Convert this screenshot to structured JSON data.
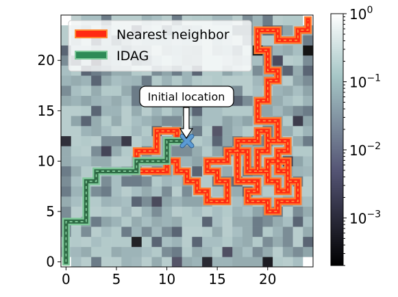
{
  "chart_data": {
    "type": "heatmap",
    "grid_size": 25,
    "x_ticks": [
      0,
      5,
      10,
      15,
      20
    ],
    "y_ticks": [
      0,
      5,
      10,
      15,
      20
    ],
    "xlim": [
      -0.5,
      24.5
    ],
    "ylim": [
      -0.5,
      24.5
    ],
    "colorbar": {
      "scale": "log",
      "range": [
        0.0002,
        1
      ],
      "colormap": "bone",
      "tick_labels": [
        {
          "base": "10",
          "exp": "0",
          "value": 1
        },
        {
          "base": "10",
          "exp": "−1",
          "value": 0.1
        },
        {
          "base": "10",
          "exp": "−2",
          "value": 0.01
        },
        {
          "base": "10",
          "exp": "−3",
          "value": 0.001
        }
      ]
    },
    "legend": {
      "location": "upper-left",
      "entries": [
        {
          "label": "Nearest neighbor",
          "color": "#ff2a12",
          "edge": "#ff8a33"
        },
        {
          "label": "IDAG",
          "color": "#2e8b57",
          "edge": "#7fc99a"
        }
      ]
    },
    "annotation": {
      "text": "Initial location",
      "point": [
        12,
        12
      ]
    },
    "initial_location_marker": {
      "x": 12,
      "y": 12,
      "color": "#5b9bd5"
    },
    "nearest_neighbor_path": [
      [
        12,
        12
      ],
      [
        11,
        12
      ],
      [
        11,
        13
      ],
      [
        10,
        13
      ],
      [
        9,
        13
      ],
      [
        9,
        12
      ],
      [
        9,
        11
      ],
      [
        8,
        11
      ],
      [
        7,
        11
      ],
      [
        7,
        10
      ],
      [
        7,
        9
      ],
      [
        8,
        9
      ],
      [
        9,
        9
      ],
      [
        10,
        9
      ],
      [
        10,
        10
      ],
      [
        11,
        10
      ],
      [
        11,
        9
      ],
      [
        12,
        9
      ],
      [
        12,
        8
      ],
      [
        13,
        8
      ],
      [
        13,
        7
      ],
      [
        14,
        7
      ],
      [
        14,
        6
      ],
      [
        15,
        6
      ],
      [
        16,
        6
      ],
      [
        16,
        7
      ],
      [
        16,
        8
      ],
      [
        15,
        8
      ],
      [
        15,
        9
      ],
      [
        14,
        9
      ],
      [
        14,
        10
      ],
      [
        15,
        10
      ],
      [
        16,
        10
      ],
      [
        16,
        11
      ],
      [
        17,
        11
      ],
      [
        17,
        10
      ],
      [
        17,
        9
      ],
      [
        17,
        8
      ],
      [
        18,
        8
      ],
      [
        19,
        8
      ],
      [
        19,
        7
      ],
      [
        18,
        7
      ],
      [
        18,
        6
      ],
      [
        19,
        6
      ],
      [
        20,
        6
      ],
      [
        20,
        5
      ],
      [
        21,
        5
      ],
      [
        21,
        6
      ],
      [
        22,
        6
      ],
      [
        23,
        6
      ],
      [
        23,
        7
      ],
      [
        23,
        8
      ],
      [
        22,
        8
      ],
      [
        22,
        9
      ],
      [
        21,
        9
      ],
      [
        21,
        10
      ],
      [
        21,
        11
      ],
      [
        22,
        11
      ],
      [
        22,
        12
      ],
      [
        21,
        12
      ],
      [
        20,
        12
      ],
      [
        20,
        11
      ],
      [
        19,
        11
      ],
      [
        19,
        10
      ],
      [
        19,
        9
      ],
      [
        20,
        9
      ],
      [
        20,
        8
      ],
      [
        21,
        8
      ],
      [
        21,
        7
      ],
      [
        22,
        7
      ],
      [
        22,
        8
      ],
      [
        22,
        9
      ],
      [
        22,
        10
      ],
      [
        21,
        10
      ],
      [
        20,
        10
      ],
      [
        20,
        9
      ],
      [
        19,
        9
      ],
      [
        18,
        9
      ],
      [
        18,
        10
      ],
      [
        18,
        11
      ],
      [
        17,
        11
      ],
      [
        17,
        12
      ],
      [
        18,
        12
      ],
      [
        19,
        12
      ],
      [
        19,
        13
      ],
      [
        20,
        13
      ],
      [
        20,
        12
      ],
      [
        21,
        12
      ],
      [
        21,
        13
      ],
      [
        21,
        14
      ],
      [
        20,
        14
      ],
      [
        19,
        14
      ],
      [
        19,
        15
      ],
      [
        19,
        16
      ],
      [
        20,
        16
      ],
      [
        20,
        17
      ],
      [
        20,
        18
      ],
      [
        21,
        18
      ],
      [
        21,
        19
      ],
      [
        20,
        19
      ],
      [
        20,
        20
      ],
      [
        20,
        21
      ],
      [
        19,
        21
      ],
      [
        19,
        22
      ],
      [
        19,
        23
      ],
      [
        20,
        23
      ],
      [
        21,
        23
      ],
      [
        21,
        22
      ],
      [
        22,
        22
      ],
      [
        23,
        22
      ],
      [
        23,
        23
      ],
      [
        24,
        23
      ],
      [
        24,
        24
      ]
    ],
    "idag_path": [
      [
        0,
        0
      ],
      [
        0,
        1
      ],
      [
        0,
        2
      ],
      [
        0,
        3
      ],
      [
        0,
        4
      ],
      [
        1,
        4
      ],
      [
        2,
        4
      ],
      [
        2,
        5
      ],
      [
        2,
        6
      ],
      [
        2,
        7
      ],
      [
        2,
        8
      ],
      [
        3,
        8
      ],
      [
        3,
        9
      ],
      [
        4,
        9
      ],
      [
        5,
        9
      ],
      [
        6,
        9
      ],
      [
        7,
        9
      ],
      [
        7,
        10
      ],
      [
        8,
        10
      ],
      [
        9,
        10
      ],
      [
        10,
        10
      ],
      [
        10,
        11
      ],
      [
        10,
        12
      ],
      [
        11,
        12
      ],
      [
        12,
        12
      ]
    ]
  }
}
